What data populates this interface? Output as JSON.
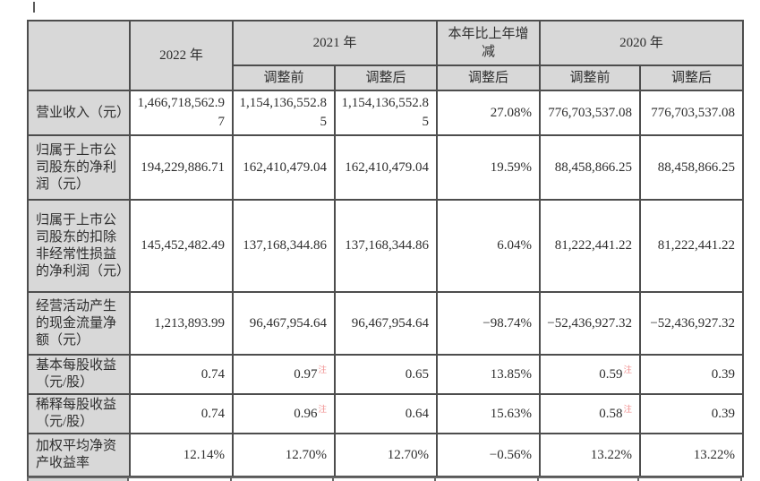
{
  "table": {
    "note_char": "注",
    "colors": {
      "header_bg": "#d8d8d8",
      "border": "#4d4d4d",
      "text": "#2e2e2e",
      "note_red": "#f08f8f"
    },
    "header": {
      "y2022": "2022 年",
      "y2021": "2021 年",
      "change": "本年比上年增减",
      "y2020": "2020 年",
      "adj_before": "调整前",
      "adj_after": "调整后"
    },
    "rows": [
      {
        "label": "营业收入（元）",
        "y2022": "1,466,718,562.97",
        "y2021_before": "1,154,136,552.85",
        "y2021_after": "1,154,136,552.85",
        "change": "27.08%",
        "y2020_before": "776,703,537.08",
        "y2020_after": "776,703,537.08"
      },
      {
        "label": "归属于上市公司股东的净利润（元）",
        "y2022": "194,229,886.71",
        "y2021_before": "162,410,479.04",
        "y2021_after": "162,410,479.04",
        "change": "19.59%",
        "y2020_before": "88,458,866.25",
        "y2020_after": "88,458,866.25"
      },
      {
        "label": "归属于上市公司股东的扣除非经常性损益的净利润（元）",
        "y2022": "145,452,482.49",
        "y2021_before": "137,168,344.86",
        "y2021_after": "137,168,344.86",
        "change": "6.04%",
        "y2020_before": "81,222,441.22",
        "y2020_after": "81,222,441.22"
      },
      {
        "label": "经营活动产生的现金流量净额（元）",
        "y2022": "1,213,893.99",
        "y2021_before": "96,467,954.64",
        "y2021_after": "96,467,954.64",
        "change": "−98.74%",
        "y2020_before": "−52,436,927.32",
        "y2020_after": "−52,436,927.32"
      },
      {
        "label": "基本每股收益（元/股）",
        "y2022": "0.74",
        "y2021_before": "0.97",
        "note_2021_before": true,
        "y2021_after": "0.65",
        "change": "13.85%",
        "y2020_before": "0.59",
        "note_2020_before": true,
        "y2020_after": "0.39"
      },
      {
        "label": "稀释每股收益（元/股）",
        "y2022": "0.74",
        "y2021_before": "0.96",
        "note_2021_before": true,
        "y2021_after": "0.64",
        "change": "15.63%",
        "y2020_before": "0.58",
        "note_2020_before": true,
        "y2020_after": "0.39"
      },
      {
        "label": "加权平均净资产收益率",
        "y2022": "12.14%",
        "y2021_before": "12.70%",
        "y2021_after": "12.70%",
        "change": "−0.56%",
        "y2020_before": "13.22%",
        "y2020_after": "13.22%"
      }
    ]
  }
}
